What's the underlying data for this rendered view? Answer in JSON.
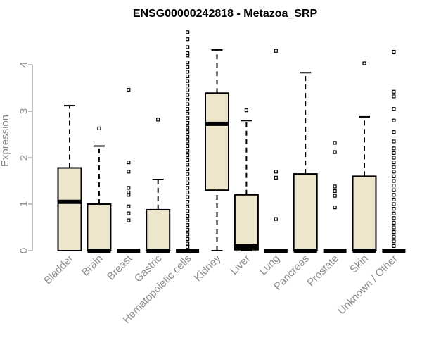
{
  "chart_data": {
    "type": "boxplot",
    "title": "ENSG00000242818 - Metazoa_SRP",
    "xlabel": "",
    "ylabel": "Expression",
    "ylim": [
      0,
      4.75
    ],
    "yticks": [
      0,
      1,
      2,
      3,
      4
    ],
    "box_fill": "#ede6cc",
    "categories": [
      "Bladder",
      "Brain",
      "Breast",
      "Gastric",
      "Hematopoietic cells",
      "Kidney",
      "Liver",
      "Lung",
      "Pancreas",
      "Prostate",
      "Skin",
      "Unknown / Other"
    ],
    "boxes": [
      {
        "name": "Bladder",
        "min": 0,
        "q1": 0,
        "median": 1.05,
        "q3": 1.78,
        "max": 3.12,
        "outliers": []
      },
      {
        "name": "Brain",
        "min": 0,
        "q1": 0,
        "median": 0,
        "q3": 1.0,
        "max": 2.25,
        "outliers": [
          2.63
        ]
      },
      {
        "name": "Breast",
        "min": 0,
        "q1": 0,
        "median": 0,
        "q3": 0,
        "max": 0,
        "outliers": [
          3.46,
          1.9,
          1.7,
          1.35,
          1.25,
          1.2,
          0.95,
          0.8,
          0.65
        ]
      },
      {
        "name": "Gastric",
        "min": 0,
        "q1": 0,
        "median": 0,
        "q3": 0.88,
        "max": 1.53,
        "outliers": [
          2.82
        ]
      },
      {
        "name": "Hematopoietic cells",
        "min": 0,
        "q1": 0,
        "median": 0,
        "q3": 0,
        "max": 0,
        "outliers": [
          4.7,
          4.55,
          4.38,
          4.25,
          4.2,
          4.05,
          3.95,
          3.85,
          3.75,
          3.65,
          3.55,
          3.45,
          3.35,
          3.25,
          3.15,
          3.05,
          2.95,
          2.85,
          2.75,
          2.65,
          2.55,
          2.45,
          2.35,
          2.25,
          2.15,
          2.05,
          1.95,
          1.85,
          1.75,
          1.65,
          1.55,
          1.45,
          1.35,
          1.25,
          1.15,
          1.05,
          0.95,
          0.85,
          0.75,
          0.65,
          0.55,
          0.45,
          0.35,
          0.25,
          0.15,
          0.08
        ]
      },
      {
        "name": "Kidney",
        "min": 0,
        "q1": 1.3,
        "median": 2.73,
        "q3": 3.39,
        "max": 4.32,
        "outliers": []
      },
      {
        "name": "Liver",
        "min": 0,
        "q1": 0.02,
        "median": 0.09,
        "q3": 1.2,
        "max": 2.8,
        "outliers": [
          3.02
        ]
      },
      {
        "name": "Lung",
        "min": 0,
        "q1": 0,
        "median": 0,
        "q3": 0,
        "max": 0,
        "outliers": [
          4.3,
          1.7,
          1.57,
          0.68
        ]
      },
      {
        "name": "Pancreas",
        "min": 0,
        "q1": 0,
        "median": 0,
        "q3": 1.65,
        "max": 3.83,
        "outliers": []
      },
      {
        "name": "Prostate",
        "min": 0,
        "q1": 0,
        "median": 0,
        "q3": 0,
        "max": 0,
        "outliers": [
          2.32,
          2.12,
          1.38,
          1.28,
          1.18,
          0.93
        ]
      },
      {
        "name": "Skin",
        "min": 0,
        "q1": 0,
        "median": 0,
        "q3": 1.6,
        "max": 2.88,
        "outliers": [
          4.03
        ]
      },
      {
        "name": "Unknown / Other",
        "min": 0,
        "q1": 0,
        "median": 0,
        "q3": 0,
        "max": 0,
        "outliers": [
          4.28,
          3.42,
          3.32,
          3.05,
          2.8,
          2.55,
          2.35,
          2.2,
          2.1,
          2.0,
          1.9,
          1.8,
          1.7,
          1.6,
          1.5,
          1.4,
          1.3,
          1.2,
          1.1,
          1.0,
          0.9,
          0.8,
          0.7,
          0.6,
          0.5,
          0.4,
          0.3,
          0.2,
          0.1
        ]
      }
    ]
  }
}
